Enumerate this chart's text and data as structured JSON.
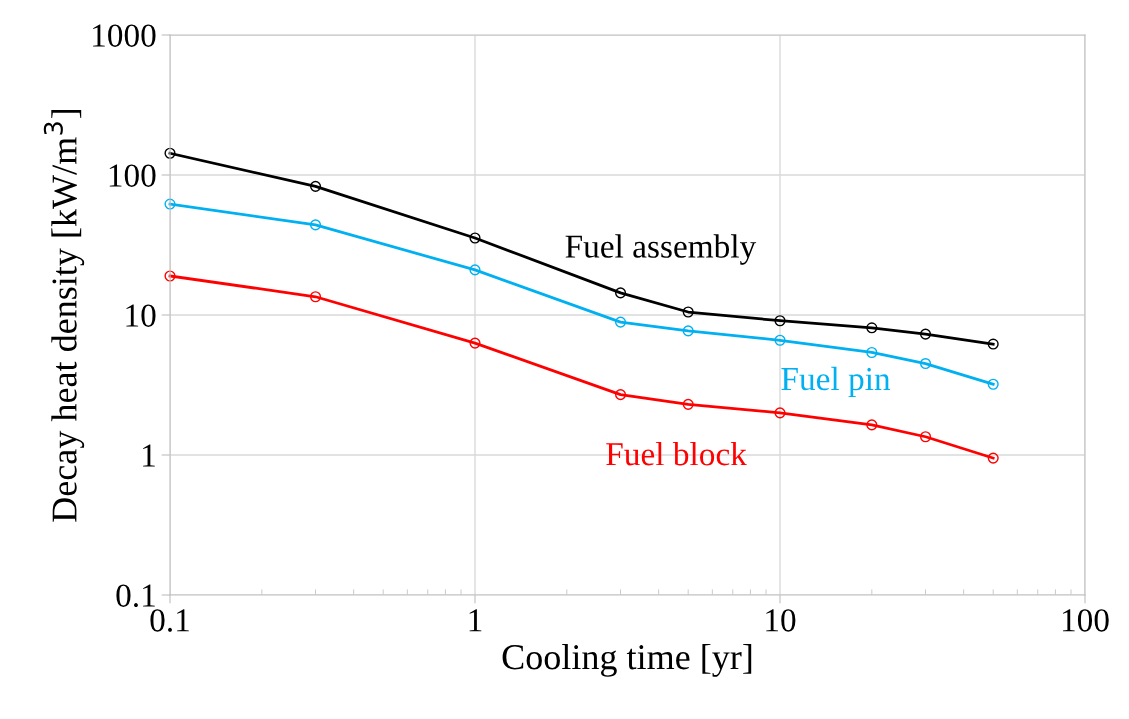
{
  "chart_data": {
    "type": "line",
    "xlabel": "Cooling time [yr]",
    "ylabel": "Decay heat density [kW/m$^{3}$]",
    "log": "xy",
    "grid": true,
    "marker": "circle",
    "line_style": "solid",
    "legend": false,
    "x": [
      0.1,
      0.3,
      1,
      3,
      5,
      10,
      20,
      30,
      50
    ],
    "xlim": [
      0.1,
      100
    ],
    "xticks": [
      0.1,
      1,
      10,
      100
    ],
    "ylim": [
      0.1,
      1000
    ],
    "yticks": [
      0.1,
      1,
      10,
      100,
      1000
    ],
    "series": [
      {
        "name": "Fuel assembly",
        "color": "#000000",
        "values": [
          143,
          83,
          35.5,
          14.4,
          10.5,
          9.1,
          8.1,
          7.3,
          6.2
        ]
      },
      {
        "name": "Fuel pin",
        "color": "#00b0f0",
        "values": [
          62,
          44,
          21,
          8.9,
          7.7,
          6.6,
          5.4,
          4.5,
          3.2
        ]
      },
      {
        "name": "Fuel block",
        "color": "#ff0000",
        "values": [
          19,
          13.5,
          6.3,
          2.7,
          2.3,
          2.0,
          1.64,
          1.35,
          0.95
        ]
      }
    ]
  }
}
